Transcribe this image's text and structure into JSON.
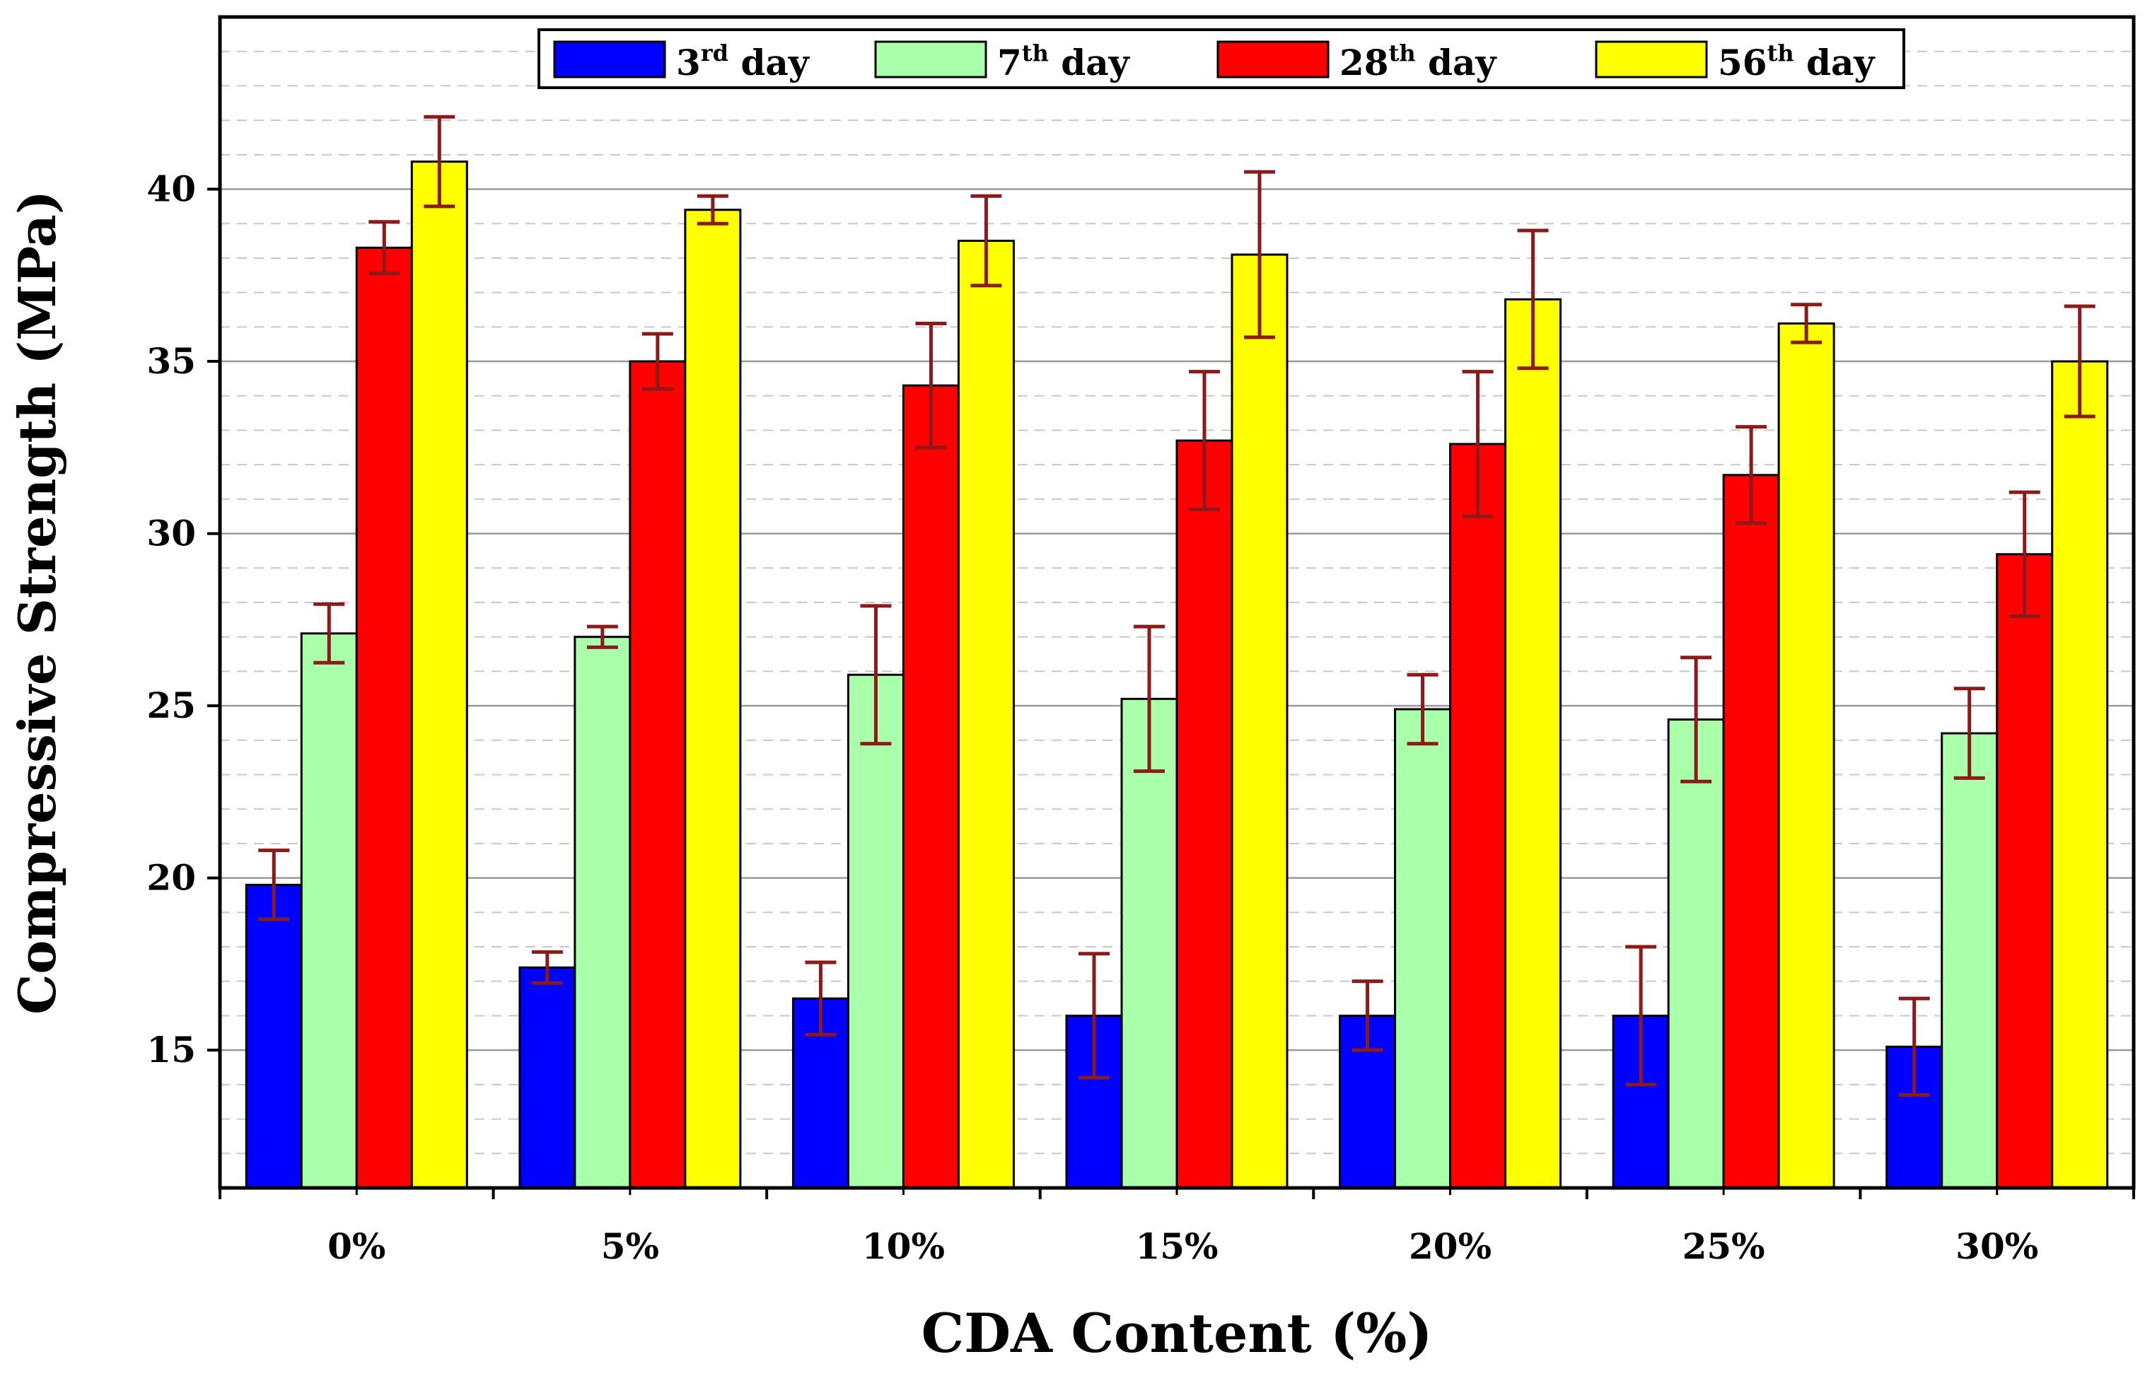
{
  "chart_data": {
    "type": "bar",
    "title": "",
    "xlabel": "CDA Content (%)",
    "ylabel": "Compressive Strength (MPa)",
    "ylim": [
      11,
      45
    ],
    "yticks": [
      15,
      20,
      25,
      30,
      35,
      40
    ],
    "categories": [
      "0%",
      "5%",
      "10%",
      "15%",
      "20%",
      "25%",
      "30%"
    ],
    "legend_position": "top",
    "grid": true,
    "series": [
      {
        "name": "3rd day",
        "legend_base": "3",
        "legend_sup": "rd",
        "legend_rest": " day",
        "color": "#0000ff",
        "values": [
          19.8,
          17.4,
          16.5,
          16.0,
          16.0,
          16.0,
          15.1
        ],
        "errors": [
          1.0,
          0.45,
          1.05,
          1.8,
          1.0,
          2.0,
          1.4
        ]
      },
      {
        "name": "7th day",
        "legend_base": "7",
        "legend_sup": "th",
        "legend_rest": " day",
        "color": "#aaffaa",
        "values": [
          27.1,
          27.0,
          25.9,
          25.2,
          24.9,
          24.6,
          24.2
        ],
        "errors": [
          0.85,
          0.3,
          2.0,
          2.1,
          1.0,
          1.8,
          1.3
        ]
      },
      {
        "name": "28th day",
        "legend_base": "28",
        "legend_sup": "th",
        "legend_rest": " day",
        "color": "#ff0000",
        "values": [
          38.3,
          35.0,
          34.3,
          32.7,
          32.6,
          31.7,
          29.4
        ],
        "errors": [
          0.75,
          0.8,
          1.8,
          2.0,
          2.1,
          1.4,
          1.8
        ]
      },
      {
        "name": "56th day",
        "legend_base": "56",
        "legend_sup": "th",
        "legend_rest": " day",
        "color": "#ffff00",
        "values": [
          40.8,
          39.4,
          38.5,
          38.1,
          36.8,
          36.1,
          35.0
        ],
        "errors": [
          1.3,
          0.4,
          1.3,
          2.4,
          2.0,
          0.55,
          1.6
        ]
      }
    ],
    "error_bar_color": "#8b1a1a"
  }
}
